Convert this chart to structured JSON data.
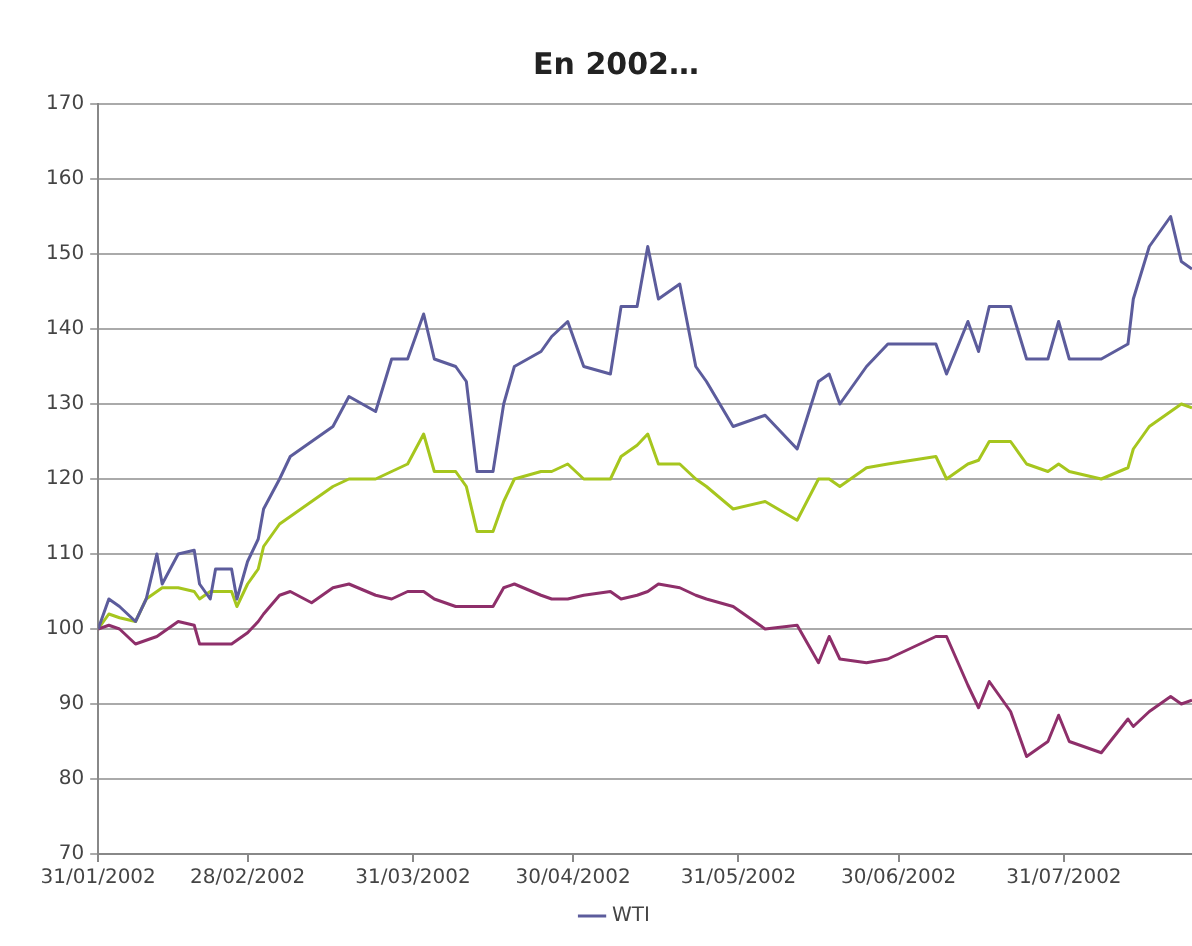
{
  "chart_data": {
    "type": "line",
    "title": "En 2002…",
    "x": [
      "2002-01-31",
      "2002-02-02",
      "2002-02-04",
      "2002-02-07",
      "2002-02-09",
      "2002-02-11",
      "2002-02-12",
      "2002-02-15",
      "2002-02-18",
      "2002-02-19",
      "2002-02-21",
      "2002-02-22",
      "2002-02-25",
      "2002-02-26",
      "2002-02-28",
      "2002-03-02",
      "2002-03-03",
      "2002-03-06",
      "2002-03-08",
      "2002-03-12",
      "2002-03-16",
      "2002-03-19",
      "2002-03-24",
      "2002-03-27",
      "2002-03-30",
      "2002-04-02",
      "2002-04-04",
      "2002-04-08",
      "2002-04-10",
      "2002-04-12",
      "2002-04-15",
      "2002-04-17",
      "2002-04-19",
      "2002-04-24",
      "2002-04-26",
      "2002-04-29",
      "2002-05-02",
      "2002-05-07",
      "2002-05-09",
      "2002-05-12",
      "2002-05-14",
      "2002-05-16",
      "2002-05-20",
      "2002-05-23",
      "2002-05-25",
      "2002-05-30",
      "2002-06-05",
      "2002-06-11",
      "2002-06-15",
      "2002-06-17",
      "2002-06-19",
      "2002-06-24",
      "2002-06-28",
      "2002-07-07",
      "2002-07-09",
      "2002-07-13",
      "2002-07-15",
      "2002-07-17",
      "2002-07-21",
      "2002-07-24",
      "2002-07-28",
      "2002-07-30",
      "2002-08-01",
      "2002-08-07",
      "2002-08-12",
      "2002-08-13",
      "2002-08-16",
      "2002-08-20",
      "2002-08-22",
      "2002-08-24"
    ],
    "series": [
      {
        "name": "WTI",
        "color": "#5c5c9c",
        "values": [
          100,
          104,
          103,
          101,
          104,
          110,
          106,
          110,
          110.5,
          106,
          104,
          108,
          108,
          104,
          109,
          112,
          116,
          120,
          123,
          125,
          127,
          131,
          129,
          136,
          136,
          142,
          136,
          135,
          133,
          121,
          121,
          130,
          135,
          137,
          139,
          141,
          135,
          134,
          143,
          143,
          151,
          144,
          146,
          135,
          133,
          127,
          128.5,
          124,
          133,
          134,
          130,
          135,
          138,
          138,
          134,
          141,
          137,
          143,
          143,
          136,
          136,
          141,
          136,
          136,
          138,
          144,
          151,
          155,
          149,
          148
        ]
      },
      {
        "color": "#8e2f6a",
        "values": [
          100,
          100.5,
          100,
          98,
          98.5,
          99,
          99.5,
          101,
          100.5,
          98,
          98,
          98,
          98,
          98.5,
          99.5,
          101,
          102,
          104.5,
          105,
          103.5,
          105.5,
          106,
          104.5,
          104,
          105,
          105,
          104,
          103,
          103,
          103,
          103,
          105.5,
          106,
          104.5,
          104,
          104,
          104.5,
          105,
          104,
          104.5,
          105,
          106,
          105.5,
          104.5,
          104,
          103,
          100,
          100.5,
          95.5,
          99,
          96,
          95.5,
          96,
          99,
          99,
          92.5,
          89.5,
          93,
          89,
          83,
          85,
          88.5,
          85,
          83.5,
          88,
          87,
          89,
          91,
          90,
          90.5
        ]
      },
      {
        "color": "#a6c61e",
        "values": [
          100,
          102,
          101.5,
          101,
          104,
          105,
          105.5,
          105.5,
          105,
          104,
          105,
          105,
          105,
          103,
          106,
          108,
          111,
          114,
          115,
          117,
          119,
          120,
          120,
          121,
          122,
          126,
          121,
          121,
          119,
          113,
          113,
          117,
          120,
          121,
          121,
          122,
          120,
          120,
          123,
          124.5,
          126,
          122,
          122,
          120,
          119,
          116,
          117,
          114.5,
          120,
          120,
          119,
          121.5,
          122,
          123,
          120,
          122,
          122.5,
          125,
          125,
          122,
          121,
          122,
          121,
          120,
          121.5,
          124,
          127,
          129,
          130,
          129.5
        ]
      }
    ],
    "xlim": [
      "2002-01-31",
      "2002-08-24"
    ],
    "xticks": [
      {
        "value": "2002-01-31",
        "label": "31/01/2002"
      },
      {
        "value": "2002-02-28",
        "label": "28/02/2002"
      },
      {
        "value": "2002-03-31",
        "label": "31/03/2002"
      },
      {
        "value": "2002-04-30",
        "label": "30/04/2002"
      },
      {
        "value": "2002-05-31",
        "label": "31/05/2002"
      },
      {
        "value": "2002-06-30",
        "label": "30/06/2002"
      },
      {
        "value": "2002-07-31",
        "label": "31/07/2002"
      }
    ],
    "ylim": [
      70,
      170
    ],
    "yticks": [
      70,
      80,
      90,
      100,
      110,
      120,
      130,
      140,
      150,
      160,
      170
    ],
    "grid": "y",
    "legend": "bottom",
    "marker": "none",
    "line_style": "solid"
  }
}
